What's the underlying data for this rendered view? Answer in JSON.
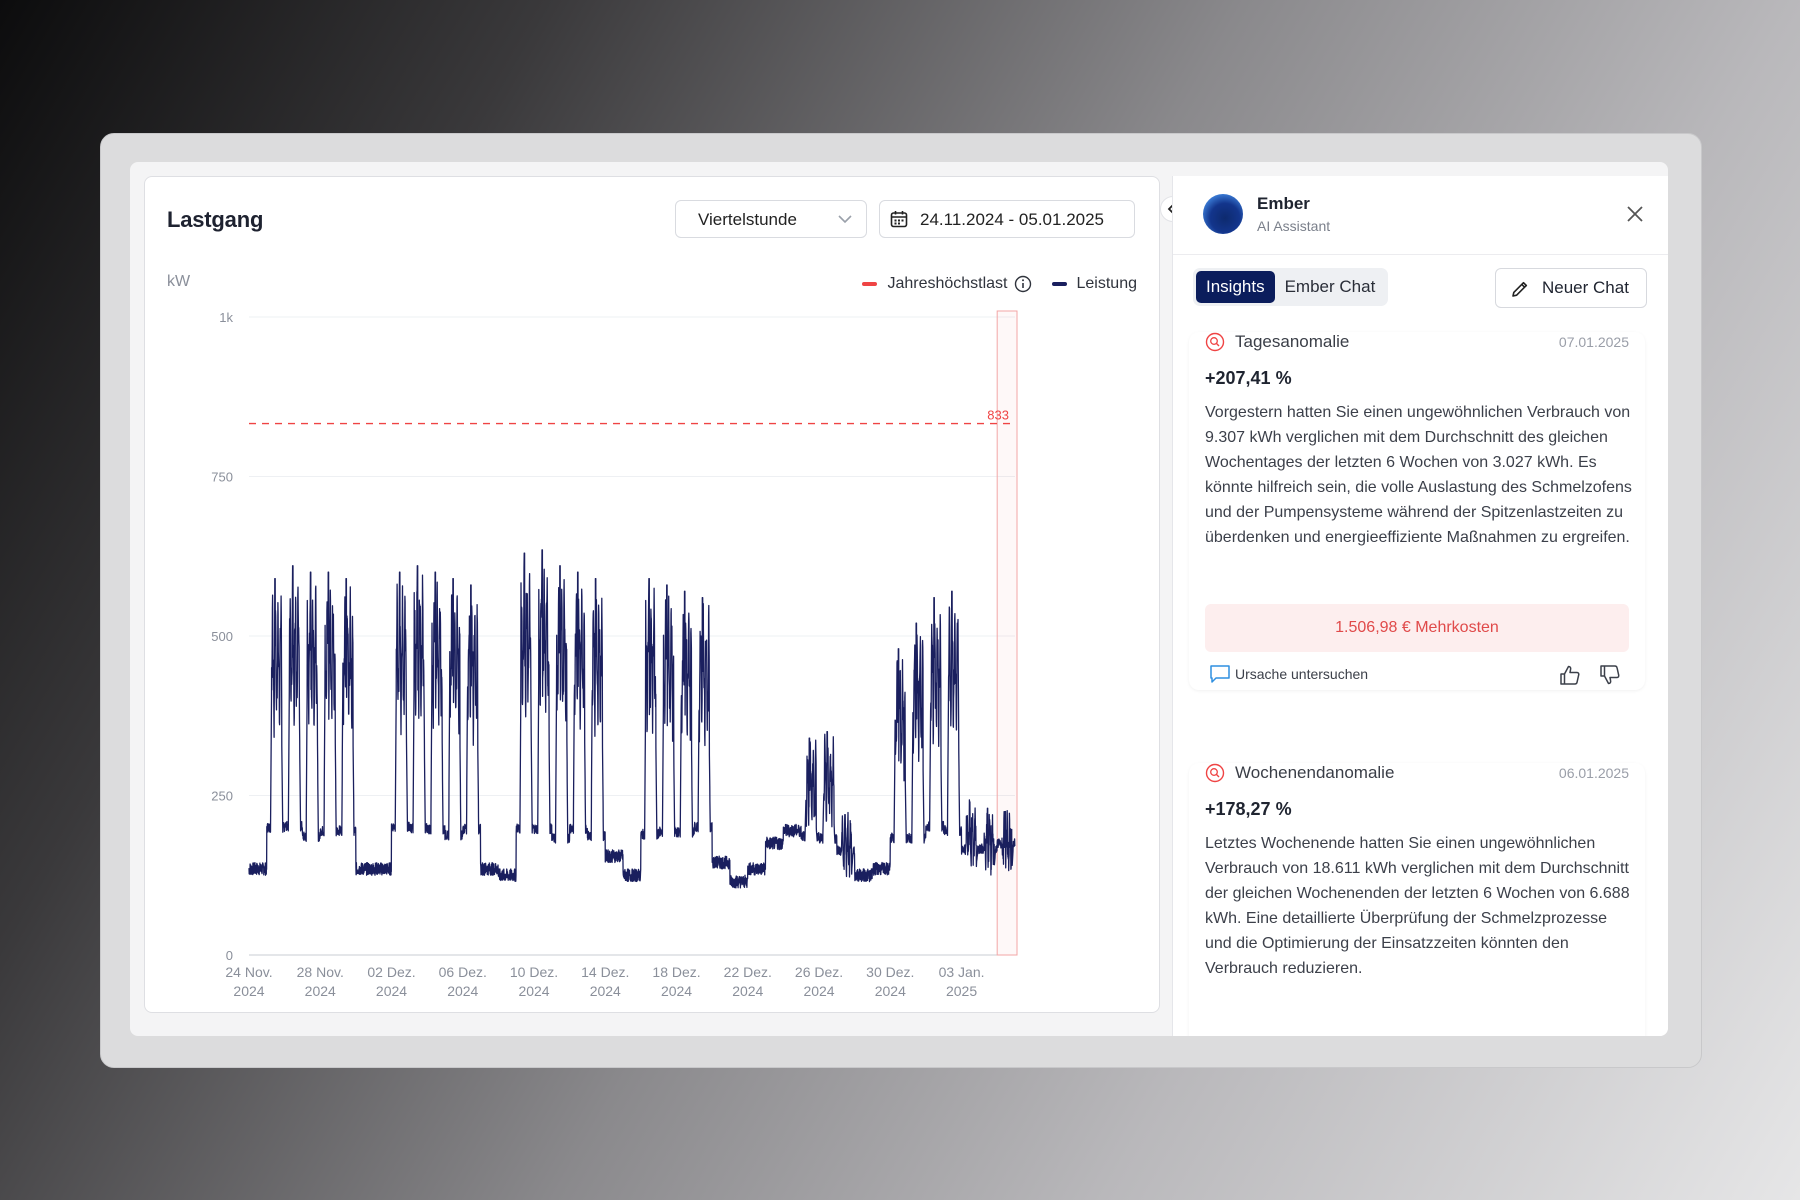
{
  "chart_panel": {
    "title": "Lastgang",
    "interval_select": "Viertelstunde",
    "date_range": "24.11.2024 - 05.01.2025"
  },
  "assistant": {
    "name": "Ember",
    "role": "AI Assistant",
    "tabs": [
      {
        "label": "Insights",
        "active": true
      },
      {
        "label": "Ember Chat",
        "active": false
      }
    ],
    "new_chat_label": "Neuer Chat"
  },
  "insights": [
    {
      "title": "Tagesanomalie",
      "date": "07.01.2025",
      "percent": "+207,41 %",
      "text": "Vorgestern hatten Sie einen ungewöhnlichen Verbrauch von 9.307 kWh verglichen mit dem Durchschnitt des gleichen Wochentages der letzten 6 Wochen von 3.027 kWh. Es könnte hilfreich sein, die volle Auslastung des Schmelzofens und der Pumpensysteme während der Spitzenlastzeiten zu überdenken und energieeffiziente Maßnahmen zu ergreifen.",
      "cost": "1.506,98 € Mehrkosten",
      "action": "Ursache untersuchen"
    },
    {
      "title": "Wochenendanomalie",
      "date": "06.01.2025",
      "percent": "+178,27 %",
      "text": "Letztes Wochenende hatten Sie einen ungewöhnlichen Verbrauch von 18.611 kWh verglichen mit dem Durchschnitt der gleichen Wochenenden der letzten 6 Wochen von 6.688 kWh. Eine detaillierte Überprüfung der Schmelzprozesse und die Optimierung der Einsatzzeiten könnten den Verbrauch reduzieren."
    }
  ],
  "colors": {
    "series": "#1a1f5e",
    "peak": "#ef4444",
    "accent": "#0b1d5c"
  },
  "chart_data": {
    "type": "line",
    "ylabel": "kW",
    "y_ticks": [
      "0",
      "250",
      "500",
      "750",
      "1k"
    ],
    "ylim": [
      0,
      1000
    ],
    "x_ticks": [
      [
        "24 Nov.",
        "2024"
      ],
      [
        "28 Nov.",
        "2024"
      ],
      [
        "02 Dez.",
        "2024"
      ],
      [
        "06 Dez.",
        "2024"
      ],
      [
        "10 Dez.",
        "2024"
      ],
      [
        "14 Dez.",
        "2024"
      ],
      [
        "18 Dez.",
        "2024"
      ],
      [
        "22 Dez.",
        "2024"
      ],
      [
        "26 Dez.",
        "2024"
      ],
      [
        "30 Dez.",
        "2024"
      ],
      [
        "03 Jan.",
        "2025"
      ]
    ],
    "x_range_days": [
      0,
      43
    ],
    "grid": "horizontal",
    "legend_position": "top-right",
    "legend": [
      {
        "name": "Jahreshöchstlast",
        "style": "dashed",
        "color": "#ef4444"
      },
      {
        "name": "Leistung",
        "style": "solid",
        "color": "#1a1f5e"
      }
    ],
    "reference_line": {
      "name": "Jahreshöchstlast",
      "value": 833,
      "label": "833"
    },
    "series": [
      {
        "name": "Leistung",
        "daily_peaks_kw": [
          140,
          590,
          610,
          600,
          600,
          590,
          140,
          140,
          600,
          610,
          600,
          590,
          580,
          140,
          130,
          630,
          635,
          610,
          600,
          590,
          160,
          130,
          590,
          580,
          570,
          560,
          150,
          120,
          140,
          180,
          200,
          340,
          350,
          220,
          130,
          140,
          480,
          520,
          560,
          570,
          240,
          230,
          225
        ]
      }
    ]
  }
}
